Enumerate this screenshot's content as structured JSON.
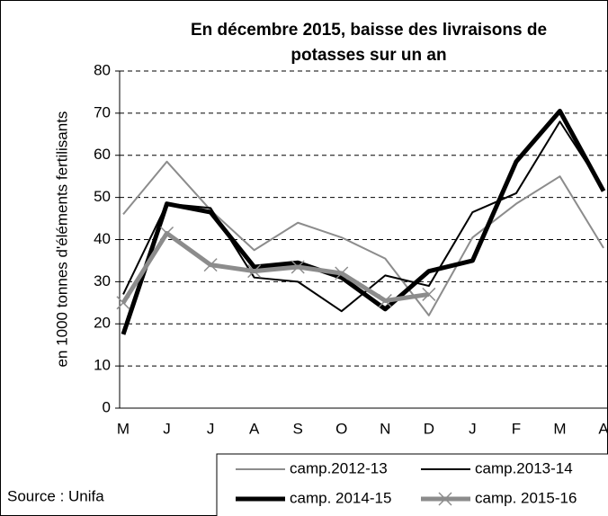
{
  "chart_data": {
    "type": "line",
    "title": [
      "En décembre 2015, baisse des livraisons de",
      "potasses sur un an"
    ],
    "y_label": "en 1000 tonnes d'éléments fertilisants",
    "source": "Source : Unifa",
    "categories": [
      "M",
      "J",
      "J",
      "A",
      "S",
      "O",
      "N",
      "D",
      "J",
      "F",
      "M",
      "A"
    ],
    "ylim": [
      0,
      80
    ],
    "yticks": [
      0,
      10,
      20,
      30,
      40,
      50,
      60,
      70,
      80
    ],
    "grid": true,
    "series": [
      {
        "name": "camp.2012-13",
        "color": "#8c8c8c",
        "width": 2,
        "values": [
          46,
          58.5,
          47,
          37.5,
          44,
          40.5,
          35.5,
          22,
          40.5,
          48.5,
          55,
          38
        ]
      },
      {
        "name": "camp.2013-14",
        "color": "#000000",
        "width": 2,
        "values": [
          27,
          48.5,
          47.5,
          31,
          30,
          23,
          31.5,
          29,
          46.5,
          51,
          68,
          52
        ]
      },
      {
        "name": "camp. 2014-15",
        "color": "#000000",
        "width": 5,
        "values": [
          17.5,
          48.5,
          46.5,
          33.5,
          34.5,
          31,
          23.5,
          32.5,
          35,
          58.5,
          70.5,
          51.5
        ]
      },
      {
        "name": "camp. 2015-16",
        "color": "#8c8c8c",
        "width": 5,
        "marker": "x",
        "values": [
          25,
          41.5,
          34,
          32.5,
          33.5,
          32,
          25.5,
          27,
          null,
          null,
          null,
          null
        ]
      }
    ]
  }
}
